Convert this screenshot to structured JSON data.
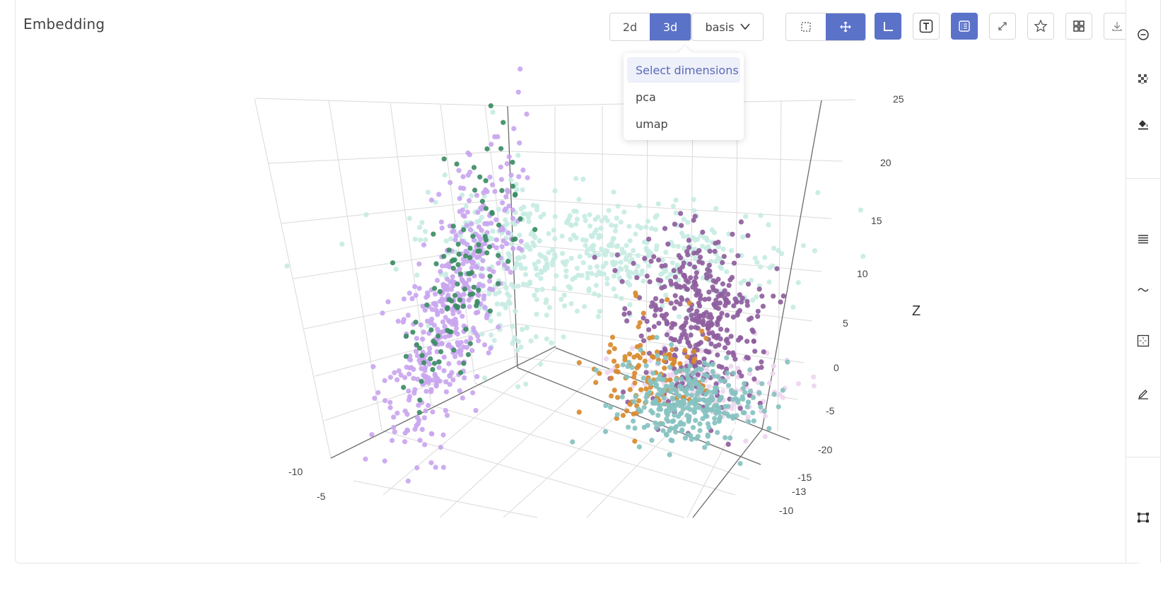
{
  "panel": {
    "title": "Embedding"
  },
  "toolbar": {
    "dim_2d": "2d",
    "dim_3d": "3d",
    "active_dim": "3d",
    "basis_label": "basis",
    "buttons": [
      {
        "name": "lasso-select-icon",
        "active": false
      },
      {
        "name": "pan-icon",
        "active": true
      },
      {
        "name": "axes-icon",
        "active": true
      },
      {
        "name": "text-label-icon",
        "active": false
      },
      {
        "name": "legend-icon",
        "active": true
      },
      {
        "name": "expand-icon",
        "active": false
      },
      {
        "name": "star-icon",
        "active": false
      },
      {
        "name": "grid-layout-icon",
        "active": false
      },
      {
        "name": "download-icon",
        "active": false
      }
    ]
  },
  "dimensions_menu": {
    "items": [
      "Select dimensions",
      "pca",
      "umap"
    ],
    "highlighted": "Select dimensions"
  },
  "right_rail": {
    "icons": [
      "zoom-out-icon",
      "checker-icon",
      "paint-bucket-icon",
      "list-icon",
      "tilde-icon",
      "crosshair-box-icon",
      "pencil-icon",
      "selection-box-icon"
    ]
  },
  "chart_data": {
    "type": "scatter",
    "projection": "3d",
    "z_label": "Z",
    "z_ticks": [
      "25",
      "20",
      "15",
      "10",
      "5",
      "0",
      "-5",
      "-20"
    ],
    "left_axis_ticks": [
      "-10",
      "-5"
    ],
    "right_axis_ticks": [
      "-15",
      "-13",
      "-10"
    ],
    "grid": true,
    "colors": {
      "lavender": "#c9a6ef",
      "green": "#3d8c65",
      "mint": "#c7ebe3",
      "purple": "#8e5e9e",
      "orange": "#d88a2e",
      "teal": "#86c2c0",
      "pale_pink": "#eed6ef"
    }
  }
}
